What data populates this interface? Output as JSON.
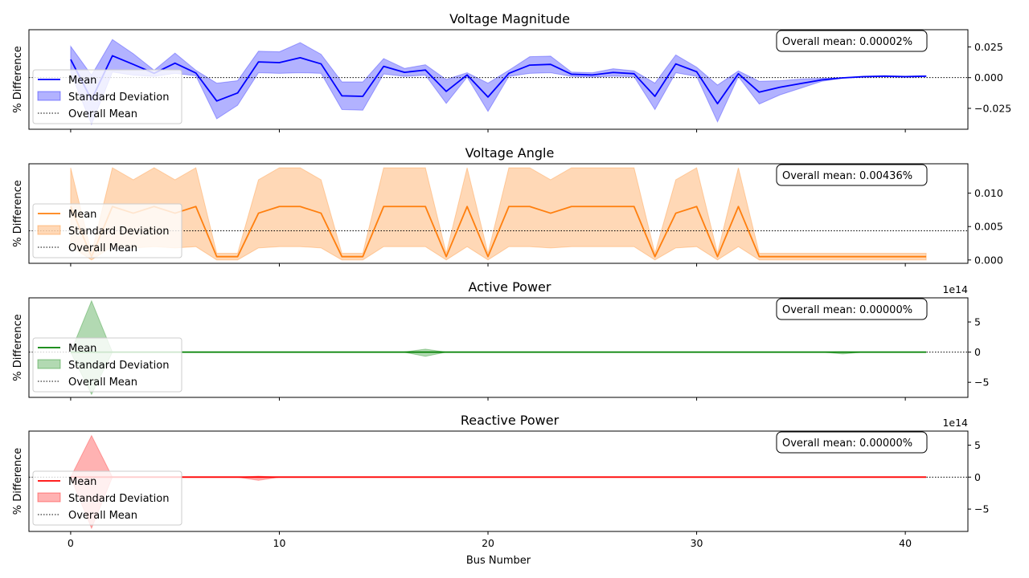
{
  "chart_data": [
    {
      "type": "line",
      "title": "Voltage Magnitude",
      "ylabel": "% Difference",
      "xlim": [
        -2,
        43
      ],
      "ylim": [
        -0.042,
        0.039
      ],
      "yticks": [
        -0.025,
        0,
        0.025
      ],
      "ytick_labels": [
        "−0.025",
        "0.000",
        "0.025"
      ],
      "offset_label": "",
      "color": "#0000ff",
      "fill_color": "#0000ff",
      "legend": [
        "Mean",
        "Standard Deviation",
        "Overall Mean"
      ],
      "legend_position": "center-left",
      "annotation": "Overall mean: 0.00002%",
      "overall_mean": 2e-05,
      "mean": [
        0.0148,
        -0.018,
        0.0178,
        0.0108,
        0.0035,
        0.0118,
        0.0038,
        -0.019,
        -0.0125,
        0.0128,
        0.0122,
        0.0162,
        0.0112,
        -0.0148,
        -0.0152,
        0.0092,
        0.0043,
        0.0062,
        -0.0112,
        0.0022,
        -0.0158,
        0.0035,
        0.0102,
        0.0108,
        0.0028,
        0.0022,
        0.0042,
        0.0032,
        -0.0152,
        0.0112,
        0.0048,
        -0.0212,
        0.0032,
        -0.0118,
        -0.0078,
        -0.0048,
        -0.0018,
        -0.0002,
        0.0008,
        0.0012,
        0.0008,
        0.0012
      ],
      "upper": [
        0.0255,
        0.002,
        0.031,
        0.0195,
        0.006,
        0.02,
        0.006,
        -0.0045,
        -0.0025,
        0.0215,
        0.021,
        0.0285,
        0.019,
        -0.0035,
        -0.0035,
        0.0155,
        0.0075,
        0.0105,
        -0.0015,
        0.004,
        -0.0045,
        0.006,
        0.017,
        0.0175,
        0.0045,
        0.004,
        0.0072,
        0.0055,
        -0.0045,
        0.0185,
        0.0085,
        -0.006,
        0.0055,
        -0.003,
        -0.0025,
        -0.0012,
        -0.0005,
        0.0,
        0.0012,
        0.0016,
        0.0012,
        0.0015
      ],
      "lower": [
        0.004,
        -0.038,
        0.0045,
        0.002,
        0.001,
        0.0035,
        0.0015,
        -0.0335,
        -0.0225,
        0.004,
        0.0035,
        0.004,
        0.0035,
        -0.026,
        -0.0265,
        0.003,
        0.001,
        0.002,
        -0.021,
        0.0004,
        -0.0275,
        0.001,
        0.0035,
        0.004,
        0.001,
        0.0005,
        0.0012,
        0.0008,
        -0.026,
        0.004,
        0.001,
        -0.036,
        0.0008,
        -0.0215,
        -0.014,
        -0.0085,
        -0.003,
        -0.0004,
        0.0004,
        0.0008,
        0.0004,
        0.0009
      ]
    },
    {
      "type": "line",
      "title": "Voltage Angle",
      "ylabel": "% Difference",
      "xlim": [
        -2,
        43
      ],
      "ylim": [
        -0.0005,
        0.0144
      ],
      "yticks": [
        0,
        0.005,
        0.01
      ],
      "ytick_labels": [
        "0.000",
        "0.005",
        "0.010"
      ],
      "offset_label": "",
      "color": "#ff7f0e",
      "fill_color": "#ff7f0e",
      "legend": [
        "Mean",
        "Standard Deviation",
        "Overall Mean"
      ],
      "legend_position": "center-left",
      "annotation": "Overall mean: 0.00436%",
      "overall_mean": 0.00436,
      "mean": [
        0.008,
        0.0005,
        0.008,
        0.007,
        0.008,
        0.007,
        0.008,
        0.0005,
        0.0005,
        0.007,
        0.008,
        0.008,
        0.007,
        0.0005,
        0.0005,
        0.008,
        0.008,
        0.008,
        0.0005,
        0.008,
        0.0005,
        0.008,
        0.008,
        0.007,
        0.008,
        0.008,
        0.008,
        0.008,
        0.0005,
        0.007,
        0.008,
        0.0005,
        0.008,
        0.0005,
        0.0005,
        0.0005,
        0.0005,
        0.0005,
        0.0005,
        0.0005,
        0.0005,
        0.0005
      ],
      "upper": [
        0.0138,
        0.001,
        0.0138,
        0.012,
        0.0138,
        0.012,
        0.0138,
        0.001,
        0.001,
        0.012,
        0.0138,
        0.0138,
        0.012,
        0.001,
        0.001,
        0.0138,
        0.0138,
        0.0138,
        0.001,
        0.0138,
        0.001,
        0.0138,
        0.0138,
        0.012,
        0.0138,
        0.0138,
        0.0138,
        0.0138,
        0.001,
        0.012,
        0.0138,
        0.001,
        0.0138,
        0.001,
        0.001,
        0.001,
        0.001,
        0.001,
        0.001,
        0.001,
        0.001,
        0.001
      ],
      "lower": [
        0.002,
        0.0,
        0.002,
        0.0018,
        0.002,
        0.0018,
        0.002,
        0.0,
        0.0,
        0.0018,
        0.002,
        0.002,
        0.0018,
        0.0,
        0.0,
        0.002,
        0.002,
        0.002,
        0.0,
        0.002,
        0.0,
        0.002,
        0.002,
        0.0018,
        0.002,
        0.002,
        0.002,
        0.002,
        0.0,
        0.0018,
        0.002,
        0.0,
        0.002,
        0.0,
        0.0,
        0.0,
        0.0,
        0.0,
        0.0,
        0.0,
        0.0,
        0.0
      ]
    },
    {
      "type": "line",
      "title": "Active Power",
      "ylabel": "% Difference",
      "xlim": [
        -2,
        43
      ],
      "ylim": [
        -750000000000000.0,
        900000000000000.0
      ],
      "yticks": [
        -500000000000000.0,
        0,
        500000000000000.0
      ],
      "ytick_labels": [
        "−5",
        "0",
        "5"
      ],
      "offset_label": "1e14",
      "color": "#008000",
      "fill_color": "#008000",
      "legend": [
        "Mean",
        "Standard Deviation",
        "Overall Mean"
      ],
      "legend_position": "center-left",
      "annotation": "Overall mean: 0.00000%",
      "overall_mean": 0,
      "mean": [
        0,
        0,
        0,
        0,
        0,
        0,
        0,
        0,
        0,
        0,
        0,
        0,
        0,
        0,
        0,
        0,
        0,
        0,
        0,
        0,
        0,
        0,
        0,
        0,
        0,
        0,
        0,
        0,
        0,
        0,
        0,
        0,
        0,
        0,
        0,
        0,
        0,
        0,
        0,
        0,
        0,
        0
      ],
      "upper": [
        0,
        850000000000000.0,
        0,
        0,
        0,
        0,
        0,
        0,
        0,
        0,
        0,
        0,
        0,
        0,
        0,
        0,
        3000000000000.0,
        50000000000000.0,
        0,
        0,
        0,
        0,
        0,
        0,
        0,
        0,
        0,
        0,
        0,
        0,
        0,
        0,
        0,
        0,
        0,
        0,
        0,
        5000000000000.0,
        0,
        0,
        0,
        0
      ],
      "lower": [
        0,
        -700000000000000.0,
        0,
        0,
        0,
        0,
        0,
        0,
        0,
        0,
        0,
        0,
        0,
        0,
        0,
        0,
        -3000000000000.0,
        -70000000000000.0,
        0,
        0,
        0,
        0,
        0,
        0,
        0,
        0,
        0,
        0,
        0,
        0,
        0,
        0,
        0,
        0,
        0,
        0,
        0,
        -30000000000000.0,
        0,
        0,
        0,
        0
      ]
    },
    {
      "type": "line",
      "title": "Reactive Power",
      "ylabel": "% Difference",
      "xlim": [
        -2,
        43
      ],
      "ylim": [
        -850000000000000.0,
        720000000000000.0
      ],
      "yticks": [
        -500000000000000.0,
        0,
        500000000000000.0
      ],
      "ytick_labels": [
        "−5",
        "0",
        "5"
      ],
      "offset_label": "1e14",
      "color": "#ff0000",
      "fill_color": "#ff0000",
      "legend": [
        "Mean",
        "Standard Deviation",
        "Overall Mean"
      ],
      "legend_position": "center-left",
      "annotation": "Overall mean: 0.00000%",
      "overall_mean": 0,
      "mean": [
        0,
        0,
        0,
        0,
        0,
        0,
        0,
        0,
        0,
        0,
        0,
        0,
        0,
        0,
        0,
        0,
        0,
        0,
        0,
        0,
        0,
        0,
        0,
        0,
        0,
        0,
        0,
        0,
        0,
        0,
        0,
        0,
        0,
        0,
        0,
        0,
        0,
        0,
        0,
        0,
        0,
        0
      ],
      "upper": [
        0,
        650000000000000.0,
        0,
        0,
        0,
        0,
        0,
        0,
        0,
        15000000000000.0,
        0,
        0,
        0,
        0,
        0,
        0,
        0,
        0,
        0,
        0,
        0,
        0,
        0,
        0,
        0,
        0,
        0,
        0,
        0,
        0,
        0,
        0,
        0,
        0,
        0,
        0,
        0,
        0,
        0,
        0,
        0,
        0
      ],
      "lower": [
        0,
        -800000000000000.0,
        0,
        0,
        0,
        0,
        0,
        0,
        0,
        -50000000000000.0,
        0,
        0,
        0,
        0,
        0,
        0,
        0,
        0,
        0,
        0,
        0,
        0,
        0,
        0,
        0,
        0,
        0,
        0,
        0,
        0,
        0,
        0,
        0,
        0,
        0,
        0,
        0,
        0,
        0,
        0,
        0,
        0
      ]
    }
  ],
  "xaxis": {
    "label": "Bus Number",
    "ticks": [
      0,
      10,
      20,
      30,
      40
    ],
    "tick_labels": [
      "0",
      "10",
      "20",
      "30",
      "40"
    ]
  }
}
